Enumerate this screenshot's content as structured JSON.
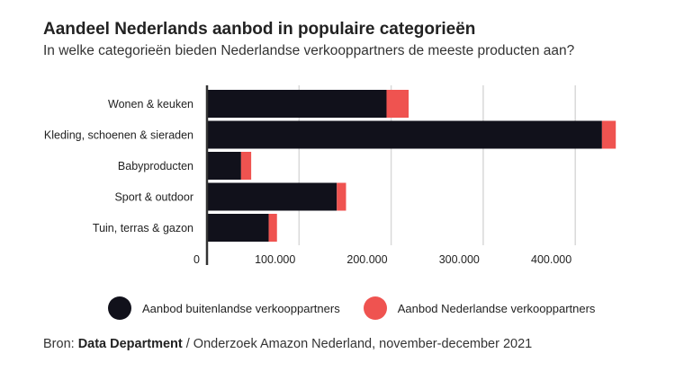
{
  "title": "Aandeel Nederlands aanbod in populaire categorieën",
  "subtitle": "In welke categorieën bieden Nederlandse verkooppartners de meeste producten aan?",
  "colors": {
    "foreign": "#11111b",
    "dutch": "#ef5350",
    "grid": "#d9d9d9",
    "axis": "#333333"
  },
  "legend": {
    "foreign": "Aanbod buitenlandse verkooppartners",
    "dutch": "Aanbod Nederlandse verkooppartners"
  },
  "source": {
    "prefix": "Bron: ",
    "name": "Data Department",
    "suffix": " / Onderzoek Amazon Nederland, november-december 2021"
  },
  "chart_data": {
    "type": "bar",
    "orientation": "horizontal",
    "stacked": true,
    "title": "Aandeel Nederlands aanbod in populaire categorieën",
    "categories": [
      "Wonen & keuken",
      "Kleding, schoenen & sieraden",
      "Babyproducten",
      "Sport & outdoor",
      "Tuin, terras & gazon"
    ],
    "series": [
      {
        "name": "Aanbod buitenlandse verkooppartners",
        "values": [
          195000,
          429000,
          37000,
          141000,
          67000
        ]
      },
      {
        "name": "Aanbod Nederlandse verkooppartners",
        "values": [
          24000,
          15000,
          11000,
          10000,
          9000
        ]
      }
    ],
    "xlim": [
      0,
      450000
    ],
    "xticks": [
      0,
      100000,
      200000,
      300000,
      400000
    ],
    "xtick_labels": [
      "0",
      "100.000",
      "200.000",
      "300.000",
      "400.000"
    ],
    "grid": true,
    "legend_position": "bottom"
  }
}
